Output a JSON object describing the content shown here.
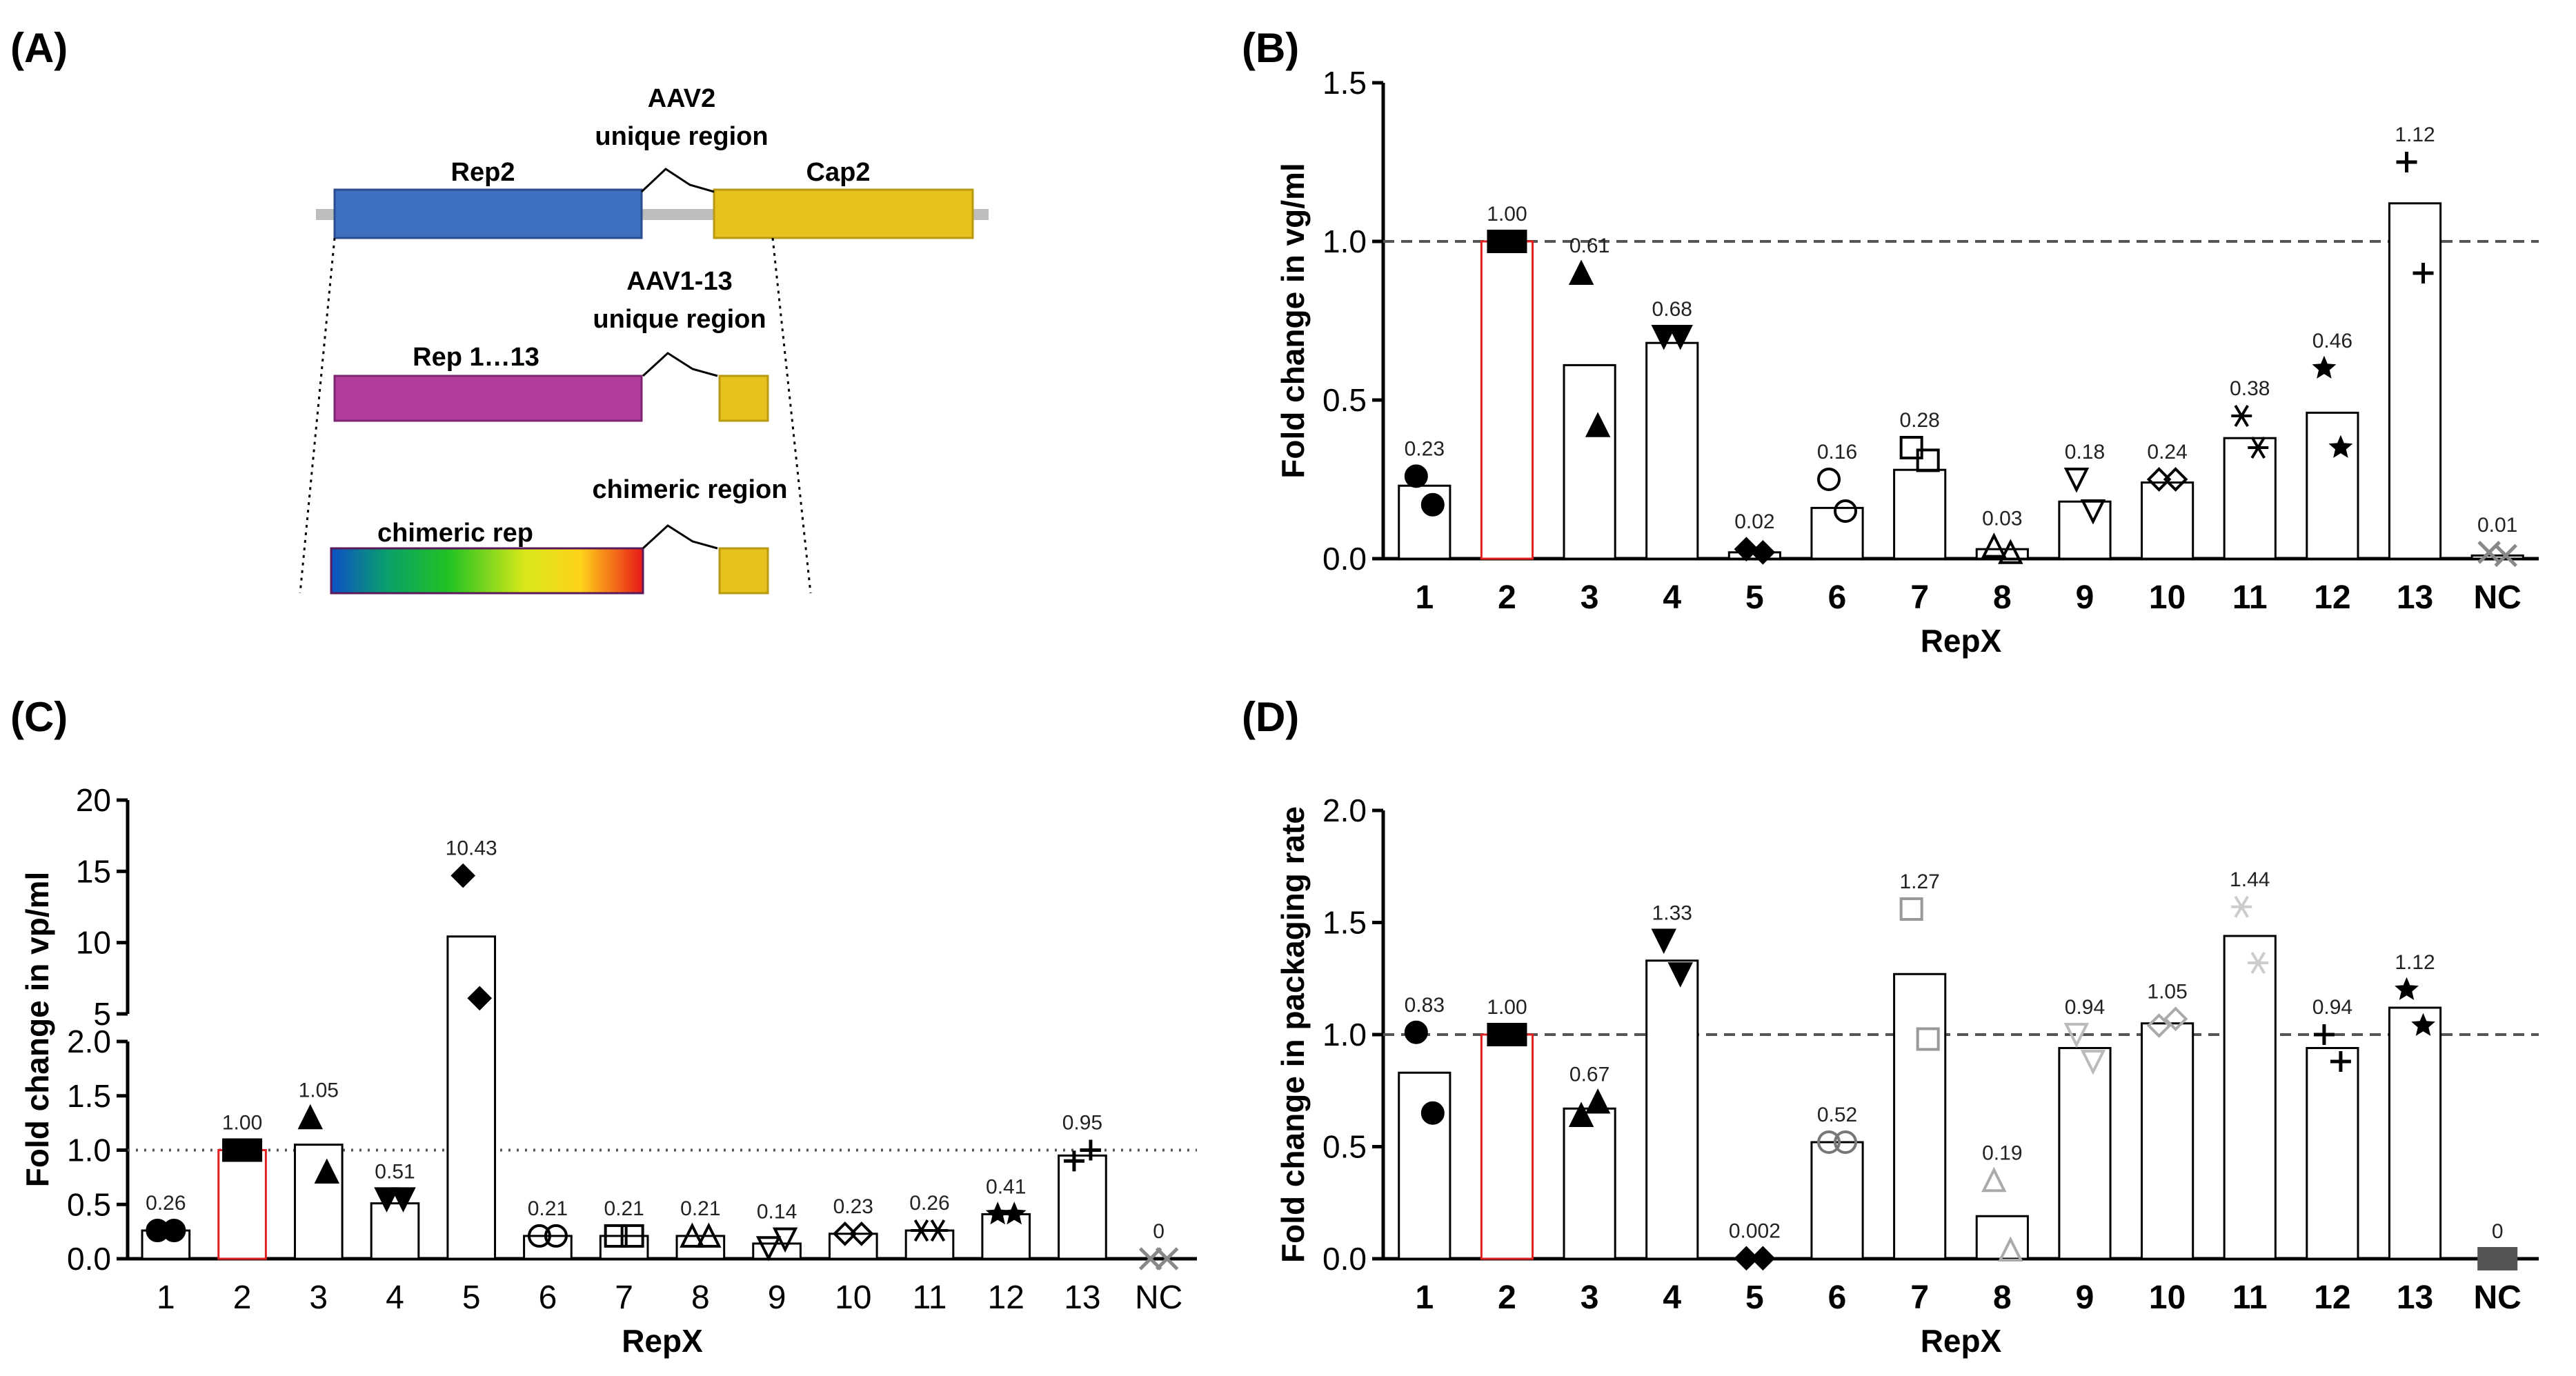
{
  "panels": {
    "a": {
      "letter": "(A)"
    },
    "b": {
      "letter": "(B)"
    },
    "c": {
      "letter": "(C)"
    },
    "d": {
      "letter": "(D)"
    }
  },
  "diagram": {
    "rep2": "Rep2",
    "cap2": "Cap2",
    "aav2_unique_line1": "AAV2",
    "aav2_unique_line2": "unique region",
    "aav1_13_unique_line1": "AAV1-13",
    "aav1_13_unique_line2": "unique region",
    "rep1_13": "Rep 1…13",
    "chimeric_region": "chimeric region",
    "chimeric_rep": "chimeric rep",
    "colors": {
      "rep2": "#3f6fbf",
      "cap": "#e8c21c",
      "rep1_13": "#b23c9c",
      "backbone": "#bdbdbd"
    }
  },
  "chart_data": [
    {
      "panel": "B",
      "type": "bar",
      "categories": [
        "1",
        "2",
        "3",
        "4",
        "5",
        "6",
        "7",
        "8",
        "9",
        "10",
        "11",
        "12",
        "13",
        "NC"
      ],
      "values": [
        0.23,
        1.0,
        0.61,
        0.68,
        0.02,
        0.16,
        0.28,
        0.03,
        0.18,
        0.24,
        0.38,
        0.46,
        1.12,
        0.01
      ],
      "value_labels": [
        "0.23",
        "1.00",
        "0.61",
        "0.68",
        "0.02",
        "0.16",
        "0.28",
        "0.03",
        "0.18",
        "0.24",
        "0.38",
        "0.46",
        "1.12",
        "0.01"
      ],
      "replicates": [
        [
          0.26,
          0.17
        ],
        [
          1.0,
          1.0
        ],
        [
          0.9,
          0.42
        ],
        [
          0.7,
          0.7
        ],
        [
          0.03,
          0.02
        ],
        [
          0.25,
          0.15
        ],
        [
          0.35,
          0.31
        ],
        [
          0.04,
          0.02
        ],
        [
          0.25,
          0.15
        ],
        [
          0.25,
          0.25
        ],
        [
          0.45,
          0.35
        ],
        [
          0.6,
          0.35
        ],
        [
          1.25,
          0.9
        ],
        [
          0.02,
          0.01
        ]
      ],
      "markers": [
        "circle",
        "square",
        "triangle",
        "triangle-down",
        "diamond",
        "circle-open",
        "square-open",
        "triangle-open",
        "triangle-down-open",
        "diamond-open",
        "asterisk",
        "star",
        "plus",
        "x"
      ],
      "highlight_index": 1,
      "highlight_color": "#e02020",
      "reference_line": 1.0,
      "reference_style": "dashed",
      "ylabel": "Fold change in vg/ml",
      "xlabel": "RepX",
      "ylim": [
        0,
        1.5
      ],
      "yticks": [
        "0.0",
        "0.5",
        "1.0",
        "1.5"
      ]
    },
    {
      "panel": "C",
      "type": "bar",
      "categories": [
        "1",
        "2",
        "3",
        "4",
        "5",
        "6",
        "7",
        "8",
        "9",
        "10",
        "11",
        "12",
        "13",
        "NC"
      ],
      "values": [
        0.26,
        1.0,
        1.05,
        0.51,
        10.43,
        0.21,
        0.21,
        0.21,
        0.14,
        0.23,
        0.26,
        0.41,
        0.95,
        0
      ],
      "value_labels": [
        "0.26",
        "1.00",
        "1.05",
        "0.51",
        "10.43",
        "0.21",
        "0.21",
        "0.21",
        "0.14",
        "0.23",
        "0.26",
        "0.41",
        "0.95",
        "0"
      ],
      "replicates": [
        [
          0.26,
          0.26
        ],
        [
          1.0,
          1.0
        ],
        [
          1.3,
          0.8
        ],
        [
          0.55,
          0.55
        ],
        [
          14.7,
          6.1
        ],
        [
          0.21,
          0.21
        ],
        [
          0.21,
          0.21
        ],
        [
          0.21,
          0.21
        ],
        [
          0.1,
          0.18
        ],
        [
          0.23,
          0.23
        ],
        [
          0.26,
          0.26
        ],
        [
          0.41,
          0.41
        ],
        [
          0.9,
          1.0
        ],
        [
          0,
          0
        ]
      ],
      "markers": [
        "circle",
        "square",
        "triangle",
        "triangle-down",
        "diamond",
        "circle-open",
        "square-open",
        "triangle-open",
        "triangle-down-open",
        "diamond-open",
        "asterisk",
        "star",
        "plus",
        "x"
      ],
      "highlight_index": 1,
      "highlight_color": "#e02020",
      "reference_line": 1.0,
      "reference_style": "dotted",
      "ylabel": "Fold change in vp/ml",
      "xlabel": "RepX",
      "ylim": [
        0,
        20
      ],
      "axis_break": [
        2.0,
        5
      ],
      "yticks_lower": [
        "0.0",
        "0.5",
        "1.0",
        "1.5",
        "2.0"
      ],
      "yticks_upper": [
        "5",
        "10",
        "15",
        "20"
      ]
    },
    {
      "panel": "D",
      "type": "bar",
      "categories": [
        "1",
        "2",
        "3",
        "4",
        "5",
        "6",
        "7",
        "8",
        "9",
        "10",
        "11",
        "12",
        "13",
        "NC"
      ],
      "values": [
        0.83,
        1.0,
        0.67,
        1.33,
        0.002,
        0.52,
        1.27,
        0.19,
        0.94,
        1.05,
        1.44,
        0.94,
        1.12,
        0
      ],
      "value_labels": [
        "0.83",
        "1.00",
        "0.67",
        "1.33",
        "0.002",
        "0.52",
        "1.27",
        "0.19",
        "0.94",
        "1.05",
        "1.44",
        "0.94",
        "1.12",
        "0"
      ],
      "replicates": [
        [
          1.01,
          0.65
        ],
        [
          1.0,
          1.0
        ],
        [
          0.64,
          0.7
        ],
        [
          1.42,
          1.27
        ],
        [
          0.002,
          0.002
        ],
        [
          0.52,
          0.52
        ],
        [
          1.56,
          0.98
        ],
        [
          0.35,
          0.04
        ],
        [
          1.0,
          0.88
        ],
        [
          1.04,
          1.07
        ],
        [
          1.57,
          1.32
        ],
        [
          1.0,
          0.88
        ],
        [
          1.2,
          1.04
        ],
        [
          0,
          0
        ]
      ],
      "markers": [
        "circle",
        "square",
        "triangle",
        "triangle-down",
        "diamond",
        "circle-open",
        "square-open",
        "triangle-open",
        "triangle-down-open",
        "diamond-open",
        "asterisk",
        "plus",
        "star",
        "square"
      ],
      "marker_colors": [
        "#000",
        "#000",
        "#000",
        "#000",
        "#000",
        "#777",
        "#999",
        "#aaa",
        "#bbb",
        "#aaa",
        "#ccc",
        "#000",
        "#000",
        "#555"
      ],
      "highlight_index": 1,
      "highlight_color": "#e02020",
      "reference_line": 1.0,
      "reference_style": "dashed",
      "ylabel": "Fold change in packaging rate",
      "xlabel": "RepX",
      "ylim": [
        0,
        2.0
      ],
      "yticks": [
        "0.0",
        "0.5",
        "1.0",
        "1.5",
        "2.0"
      ]
    }
  ]
}
